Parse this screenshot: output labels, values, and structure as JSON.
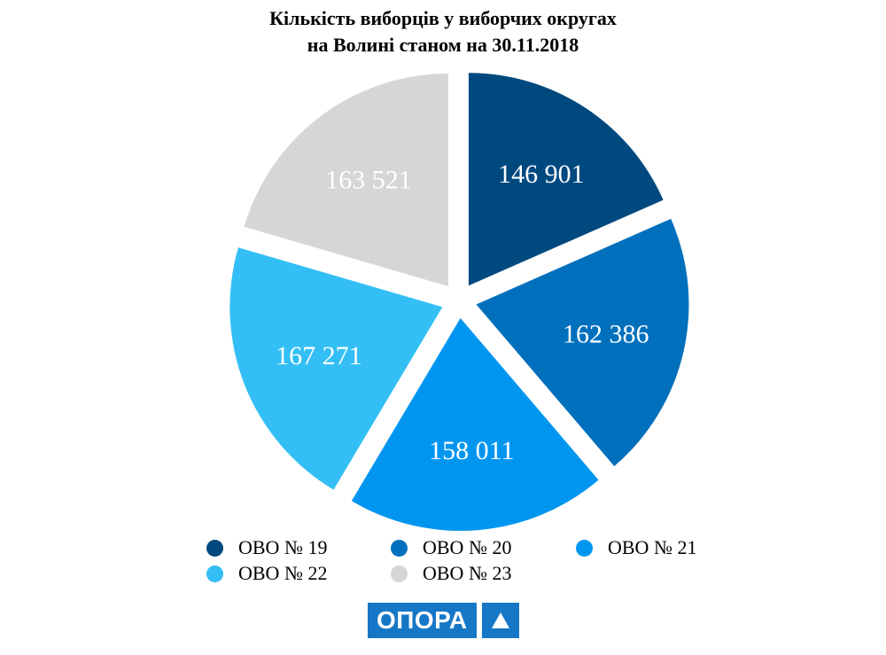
{
  "title": {
    "line1": "Кількість виборців у виборчих округах",
    "line2": "на Волині станом на 30.11.2018"
  },
  "chart_data": {
    "type": "pie",
    "title": "Кількість виборців у виборчих округах на Волині станом на 30.11.2018",
    "labels": [
      "ОВО № 19",
      "ОВО № 20",
      "ОВО № 21",
      "ОВО № 22",
      "ОВО № 23"
    ],
    "values": [
      146901,
      162386,
      158011,
      167271,
      163521
    ],
    "value_labels": [
      "146 901",
      "162 386",
      "158 011",
      "167 271",
      "163 521"
    ],
    "colors": [
      "#00497f",
      "#0070bd",
      "#0096f0",
      "#33bff5",
      "#d6d6d6"
    ],
    "exploded": true,
    "legend_position": "bottom"
  },
  "logo": {
    "text": "ОПОРА",
    "color": "#1577c6"
  }
}
